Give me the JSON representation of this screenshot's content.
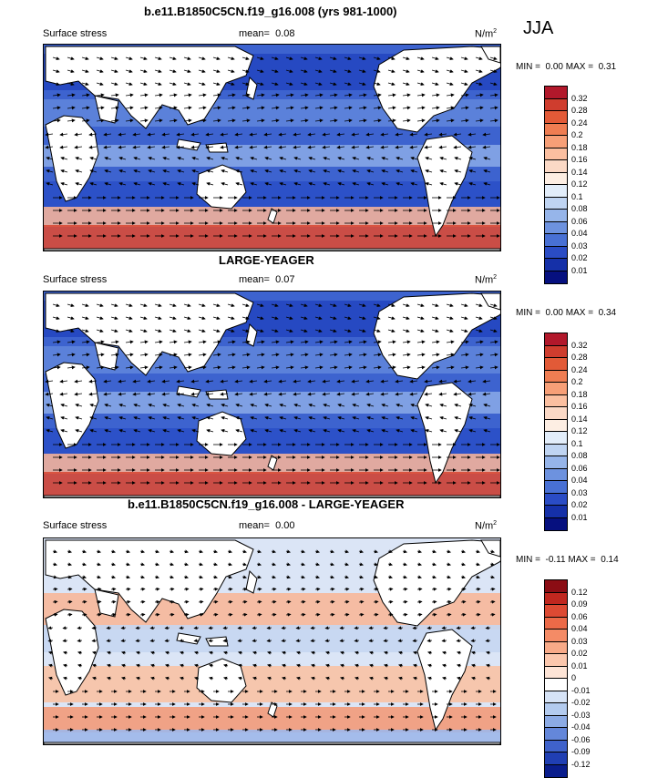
{
  "season": "JJA",
  "panels": [
    {
      "title": "b.e11.B1850C5CN.f19_g16.008 (yrs 981-1000)",
      "left_label": "Surface stress",
      "mean_label": "mean=",
      "mean_value": "0.08",
      "units": "N/m",
      "units_sup": "2",
      "min_label": "MIN =",
      "min_value": "0.00",
      "max_label": "MAX =",
      "max_value": "0.31",
      "colorbar_labels": [
        "0.32",
        "0.28",
        "0.24",
        "0.2",
        "0.18",
        "0.16",
        "0.14",
        "0.12",
        "0.1",
        "0.08",
        "0.06",
        "0.04",
        "0.03",
        "0.02",
        "0.01"
      ],
      "colorbar_colors": [
        "#b2182b",
        "#cf3d2e",
        "#e25a37",
        "#ef7d52",
        "#f79f77",
        "#fbbfa0",
        "#fbd9c6",
        "#fdeee3",
        "#e2edfa",
        "#bfd4f2",
        "#96b5ea",
        "#6d92df",
        "#4870d4",
        "#2a4cc5",
        "#1530a8",
        "#06107f"
      ]
    },
    {
      "title": "LARGE-YEAGER",
      "left_label": "Surface stress",
      "mean_label": "mean=",
      "mean_value": "0.07",
      "units": "N/m",
      "units_sup": "2",
      "min_label": "MIN =",
      "min_value": "0.00",
      "max_label": "MAX =",
      "max_value": "0.34",
      "colorbar_labels": [
        "0.32",
        "0.28",
        "0.24",
        "0.2",
        "0.18",
        "0.16",
        "0.14",
        "0.12",
        "0.1",
        "0.08",
        "0.06",
        "0.04",
        "0.03",
        "0.02",
        "0.01"
      ],
      "colorbar_colors": [
        "#b2182b",
        "#cf3d2e",
        "#e25a37",
        "#ef7d52",
        "#f79f77",
        "#fbbfa0",
        "#fbd9c6",
        "#fdeee3",
        "#e2edfa",
        "#bfd4f2",
        "#96b5ea",
        "#6d92df",
        "#4870d4",
        "#2a4cc5",
        "#1530a8",
        "#06107f"
      ]
    },
    {
      "title": "b.e11.B1850C5CN.f19_g16.008 - LARGE-YEAGER",
      "left_label": "Surface stress",
      "mean_label": "mean=",
      "mean_value": "0.00",
      "units": "N/m",
      "units_sup": "2",
      "min_label": "MIN =",
      "min_value": "-0.11",
      "max_label": "MAX =",
      "max_value": "0.14",
      "colorbar_labels": [
        "0.12",
        "0.09",
        "0.06",
        "0.04",
        "0.03",
        "0.02",
        "0.01",
        "0",
        "-0.01",
        "-0.02",
        "-0.03",
        "-0.04",
        "-0.06",
        "-0.09",
        "-0.12"
      ],
      "colorbar_colors": [
        "#8b0d14",
        "#c0271f",
        "#dd4a33",
        "#ec6a48",
        "#f48b66",
        "#f8aa88",
        "#fbc7ad",
        "#fde4d6",
        "#ffffff",
        "#d6e3f6",
        "#b3cbef",
        "#8cabe5",
        "#6487da",
        "#3f62cb",
        "#203fb3",
        "#0a1d8c"
      ]
    }
  ]
}
